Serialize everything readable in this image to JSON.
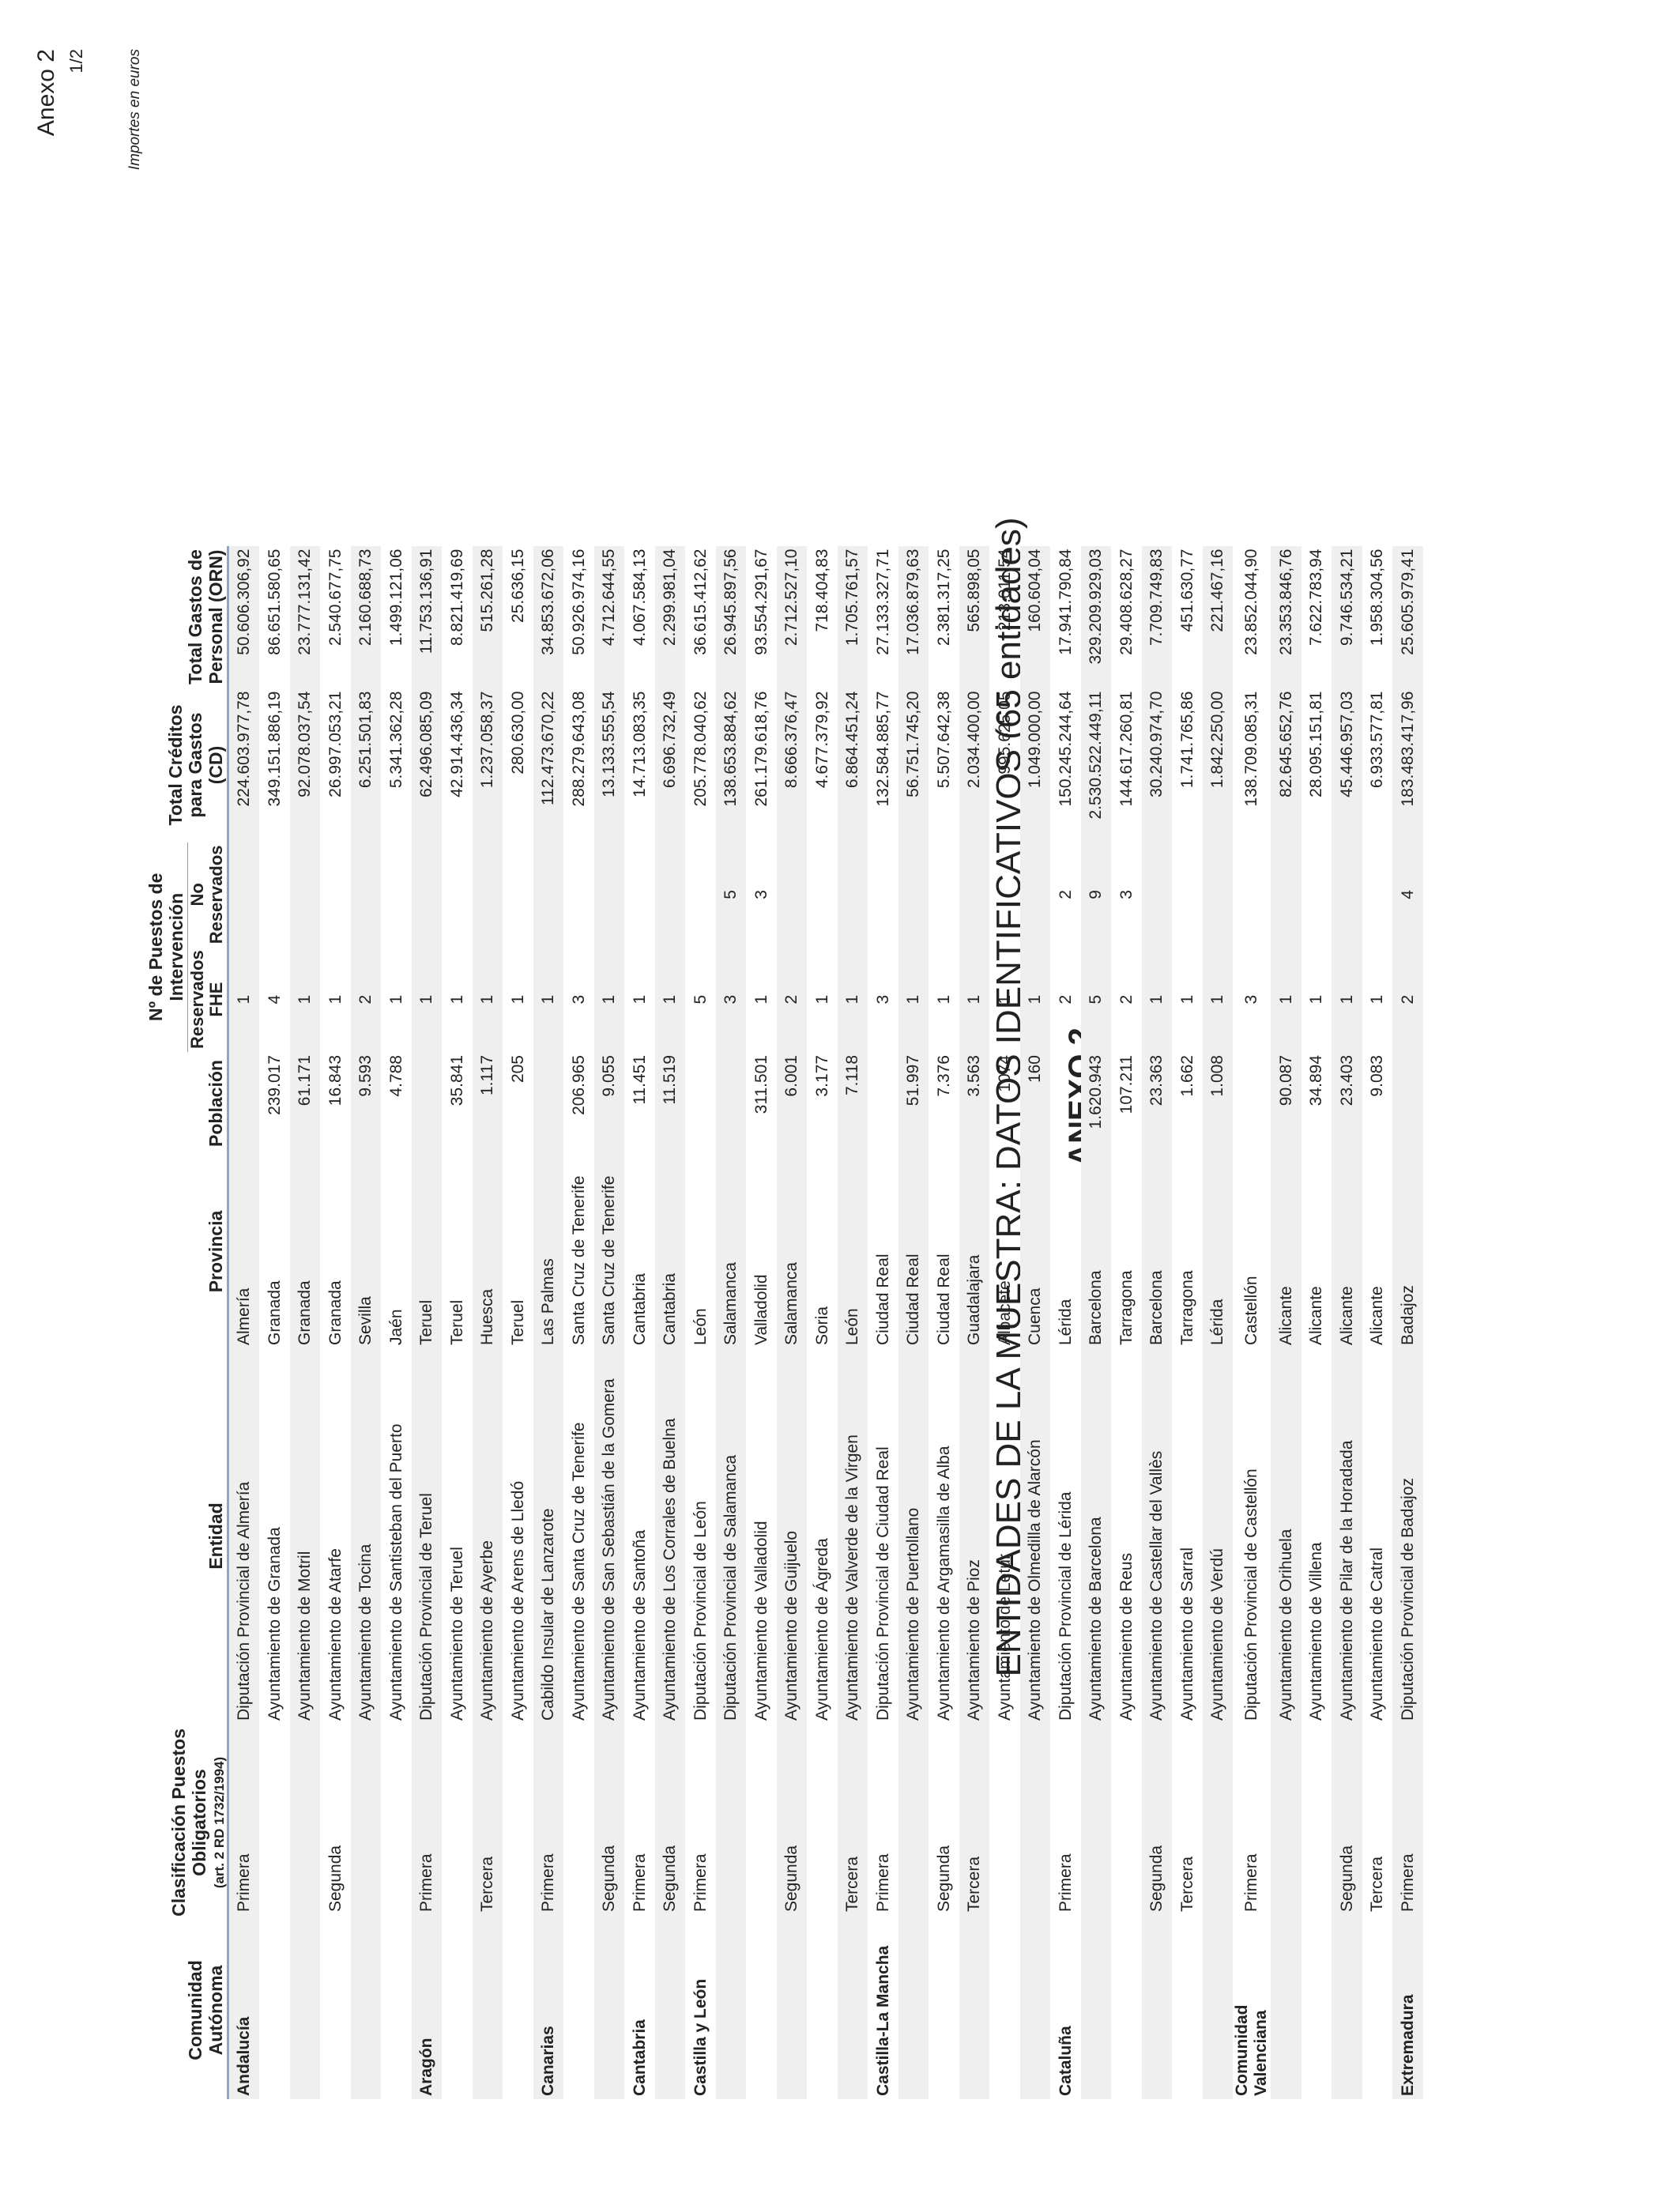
{
  "header": {
    "corner_label": "Anexo 2",
    "page_number": "1/2",
    "anexo_title": "ANEXO 2",
    "main_title": "ENTIDADES DE LA MUESTRA: DATOS IDENTIFICATIVOS (65 entidades)",
    "units_note": "Importes en euros"
  },
  "columns": {
    "comunidad": "Comunidad Autónoma",
    "clasificacion": "Clasificación Puestos Obligatorios",
    "clasificacion_sub": "(art. 2 RD 1732/1994)",
    "entidad": "Entidad",
    "provincia": "Provincia",
    "poblacion": "Población",
    "puestos_group": "Nº de Puestos de Intervención",
    "reservados": "Reservados FHE",
    "no_reservados": "No Reservados",
    "creditos": "Total Créditos para Gastos (CD)",
    "gastos": "Total Gastos de Personal (ORN)"
  },
  "rows": [
    {
      "comunidad": "Andalucía",
      "clasificacion": "Primera",
      "entidad": "Diputación Provincial de Almería",
      "provincia": "Almería",
      "poblacion": "",
      "reservados": "1",
      "no_reservados": "",
      "creditos": "224.603.977,78",
      "gastos": "50.606.306,92"
    },
    {
      "comunidad": "",
      "clasificacion": "",
      "entidad": "Ayuntamiento de Granada",
      "provincia": "Granada",
      "poblacion": "239.017",
      "reservados": "4",
      "no_reservados": "",
      "creditos": "349.151.886,19",
      "gastos": "86.651.580,65"
    },
    {
      "comunidad": "",
      "clasificacion": "",
      "entidad": "Ayuntamiento de Motril",
      "provincia": "Granada",
      "poblacion": "61.171",
      "reservados": "1",
      "no_reservados": "",
      "creditos": "92.078.037,54",
      "gastos": "23.777.131,42"
    },
    {
      "comunidad": "",
      "clasificacion": "Segunda",
      "entidad": "Ayuntamiento de Atarfe",
      "provincia": "Granada",
      "poblacion": "16.843",
      "reservados": "1",
      "no_reservados": "",
      "creditos": "26.997.053,21",
      "gastos": "2.540.677,75"
    },
    {
      "comunidad": "",
      "clasificacion": "",
      "entidad": "Ayuntamiento de Tocina",
      "provincia": "Sevilla",
      "poblacion": "9.593",
      "reservados": "2",
      "no_reservados": "",
      "creditos": "6.251.501,83",
      "gastos": "2.160.688,73"
    },
    {
      "comunidad": "",
      "clasificacion": "",
      "entidad": "Ayuntamiento de Santisteban del Puerto",
      "provincia": "Jaén",
      "poblacion": "4.788",
      "reservados": "1",
      "no_reservados": "",
      "creditos": "5.341.362,28",
      "gastos": "1.499.121,06"
    },
    {
      "comunidad": "Aragón",
      "clasificacion": "Primera",
      "entidad": "Diputación Provincial de Teruel",
      "provincia": "Teruel",
      "poblacion": "",
      "reservados": "1",
      "no_reservados": "",
      "creditos": "62.496.085,09",
      "gastos": "11.753.136,91"
    },
    {
      "comunidad": "",
      "clasificacion": "",
      "entidad": "Ayuntamiento de Teruel",
      "provincia": "Teruel",
      "poblacion": "35.841",
      "reservados": "1",
      "no_reservados": "",
      "creditos": "42.914.436,34",
      "gastos": "8.821.419,69"
    },
    {
      "comunidad": "",
      "clasificacion": "Tercera",
      "entidad": "Ayuntamiento de Ayerbe",
      "provincia": "Huesca",
      "poblacion": "1.117",
      "reservados": "1",
      "no_reservados": "",
      "creditos": "1.237.058,37",
      "gastos": "515.261,28"
    },
    {
      "comunidad": "",
      "clasificacion": "",
      "entidad": "Ayuntamiento de Arens de Lledó",
      "provincia": "Teruel",
      "poblacion": "205",
      "reservados": "1",
      "no_reservados": "",
      "creditos": "280.630,00",
      "gastos": "25.636,15"
    },
    {
      "comunidad": "Canarias",
      "clasificacion": "Primera",
      "entidad": "Cabildo Insular de Lanzarote",
      "provincia": "Las Palmas",
      "poblacion": "",
      "reservados": "1",
      "no_reservados": "",
      "creditos": "112.473.670,22",
      "gastos": "34.853.672,06"
    },
    {
      "comunidad": "",
      "clasificacion": "",
      "entidad": "Ayuntamiento de Santa Cruz de Tenerife",
      "provincia": "Santa Cruz de Tenerife",
      "poblacion": "206.965",
      "reservados": "3",
      "no_reservados": "",
      "creditos": "288.279.643,08",
      "gastos": "50.926.974,16"
    },
    {
      "comunidad": "",
      "clasificacion": "Segunda",
      "entidad": "Ayuntamiento de San Sebastián de la Gomera",
      "provincia": "Santa Cruz de Tenerife",
      "poblacion": "9.055",
      "reservados": "1",
      "no_reservados": "",
      "creditos": "13.133.555,54",
      "gastos": "4.712.644,55"
    },
    {
      "comunidad": "Cantabria",
      "clasificacion": "Primera",
      "entidad": "Ayuntamiento de Santoña",
      "provincia": "Cantabria",
      "poblacion": "11.451",
      "reservados": "1",
      "no_reservados": "",
      "creditos": "14.713.083,35",
      "gastos": "4.067.584,13"
    },
    {
      "comunidad": "",
      "clasificacion": "Segunda",
      "entidad": "Ayuntamiento de Los Corrales de Buelna",
      "provincia": "Cantabria",
      "poblacion": "11.519",
      "reservados": "1",
      "no_reservados": "",
      "creditos": "6.696.732,49",
      "gastos": "2.299.981,04"
    },
    {
      "comunidad": "Castilla y León",
      "clasificacion": "Primera",
      "entidad": "Diputación Provincial de León",
      "provincia": "León",
      "poblacion": "",
      "reservados": "5",
      "no_reservados": "",
      "creditos": "205.778.040,62",
      "gastos": "36.615.412,62"
    },
    {
      "comunidad": "",
      "clasificacion": "",
      "entidad": "Diputación Provincial de Salamanca",
      "provincia": "Salamanca",
      "poblacion": "",
      "reservados": "3",
      "no_reservados": "5",
      "creditos": "138.653.884,62",
      "gastos": "26.945.897,56"
    },
    {
      "comunidad": "",
      "clasificacion": "",
      "entidad": "Ayuntamiento de Valladolid",
      "provincia": "Valladolid",
      "poblacion": "311.501",
      "reservados": "1",
      "no_reservados": "3",
      "creditos": "261.179.618,76",
      "gastos": "93.554.291,67"
    },
    {
      "comunidad": "",
      "clasificacion": "Segunda",
      "entidad": "Ayuntamiento de Guijuelo",
      "provincia": "Salamanca",
      "poblacion": "6.001",
      "reservados": "2",
      "no_reservados": "",
      "creditos": "8.666.376,47",
      "gastos": "2.712.527,10"
    },
    {
      "comunidad": "",
      "clasificacion": "",
      "entidad": "Ayuntamiento de Ágreda",
      "provincia": "Soria",
      "poblacion": "3.177",
      "reservados": "1",
      "no_reservados": "",
      "creditos": "4.677.379,92",
      "gastos": "718.404,83"
    },
    {
      "comunidad": "",
      "clasificacion": "Tercera",
      "entidad": "Ayuntamiento de Valverde de la Virgen",
      "provincia": "León",
      "poblacion": "7.118",
      "reservados": "1",
      "no_reservados": "",
      "creditos": "6.864.451,24",
      "gastos": "1.705.761,57"
    },
    {
      "comunidad": "Castilla-La Mancha",
      "clasificacion": "Primera",
      "entidad": "Diputación Provincial de Ciudad Real",
      "provincia": "Ciudad Real",
      "poblacion": "",
      "reservados": "3",
      "no_reservados": "",
      "creditos": "132.584.885,77",
      "gastos": "27.133.327,71"
    },
    {
      "comunidad": "",
      "clasificacion": "",
      "entidad": "Ayuntamiento de Puertollano",
      "provincia": "Ciudad Real",
      "poblacion": "51.997",
      "reservados": "1",
      "no_reservados": "",
      "creditos": "56.751.745,20",
      "gastos": "17.036.879,63"
    },
    {
      "comunidad": "",
      "clasificacion": "Segunda",
      "entidad": "Ayuntamiento de Argamasilla de Alba",
      "provincia": "Ciudad Real",
      "poblacion": "7.376",
      "reservados": "1",
      "no_reservados": "",
      "creditos": "5.507.642,38",
      "gastos": "2.381.317,25"
    },
    {
      "comunidad": "",
      "clasificacion": "Tercera",
      "entidad": "Ayuntamiento de Pioz",
      "provincia": "Guadalajara",
      "poblacion": "3.563",
      "reservados": "1",
      "no_reservados": "",
      "creditos": "2.034.400,00",
      "gastos": "565.898,05"
    },
    {
      "comunidad": "",
      "clasificacion": "",
      "entidad": "Ayuntamiento de Letur",
      "provincia": "Albacete",
      "poblacion": "1074",
      "reservados": "1",
      "no_reservados": "",
      "creditos": "995.625,05",
      "gastos": "213.011,54"
    },
    {
      "comunidad": "",
      "clasificacion": "",
      "entidad": "Ayuntamiento de Olmedilla de Alarcón",
      "provincia": "Cuenca",
      "poblacion": "160",
      "reservados": "1",
      "no_reservados": "",
      "creditos": "1.049.000,00",
      "gastos": "160.604,04"
    },
    {
      "comunidad": "Cataluña",
      "clasificacion": "Primera",
      "entidad": "Diputación Provincial de Lérida",
      "provincia": "Lérida",
      "poblacion": "",
      "reservados": "2",
      "no_reservados": "2",
      "creditos": "150.245.244,64",
      "gastos": "17.941.790,84"
    },
    {
      "comunidad": "",
      "clasificacion": "",
      "entidad": "Ayuntamiento de Barcelona",
      "provincia": "Barcelona",
      "poblacion": "1.620.943",
      "reservados": "5",
      "no_reservados": "9",
      "creditos": "2.530.522.449,11",
      "gastos": "329.209.929,03"
    },
    {
      "comunidad": "",
      "clasificacion": "",
      "entidad": "Ayuntamiento de Reus",
      "provincia": "Tarragona",
      "poblacion": "107.211",
      "reservados": "2",
      "no_reservados": "3",
      "creditos": "144.617.260,81",
      "gastos": "29.408.628,27"
    },
    {
      "comunidad": "",
      "clasificacion": "Segunda",
      "entidad": "Ayuntamiento de Castellar del Vallès",
      "provincia": "Barcelona",
      "poblacion": "23.363",
      "reservados": "1",
      "no_reservados": "",
      "creditos": "30.240.974,70",
      "gastos": "7.709.749,83"
    },
    {
      "comunidad": "",
      "clasificacion": "Tercera",
      "entidad": "Ayuntamiento de Sarral",
      "provincia": "Tarragona",
      "poblacion": "1.662",
      "reservados": "1",
      "no_reservados": "",
      "creditos": "1.741.765,86",
      "gastos": "451.630,77"
    },
    {
      "comunidad": "",
      "clasificacion": "",
      "entidad": "Ayuntamiento de Verdú",
      "provincia": "Lérida",
      "poblacion": "1.008",
      "reservados": "1",
      "no_reservados": "",
      "creditos": "1.842.250,00",
      "gastos": "221.467,16"
    },
    {
      "comunidad": "Comunidad Valenciana",
      "clasificacion": "Primera",
      "entidad": "Diputación Provincial de Castellón",
      "provincia": "Castellón",
      "poblacion": "",
      "reservados": "3",
      "no_reservados": "",
      "creditos": "138.709.085,31",
      "gastos": "23.852.044,90"
    },
    {
      "comunidad": "",
      "clasificacion": "",
      "entidad": "Ayuntamiento de Orihuela",
      "provincia": "Alicante",
      "poblacion": "90.087",
      "reservados": "1",
      "no_reservados": "",
      "creditos": "82.645.652,76",
      "gastos": "23.353.846,76"
    },
    {
      "comunidad": "",
      "clasificacion": "",
      "entidad": "Ayuntamiento de Villena",
      "provincia": "Alicante",
      "poblacion": "34.894",
      "reservados": "1",
      "no_reservados": "",
      "creditos": "28.095.151,81",
      "gastos": "7.622.783,94"
    },
    {
      "comunidad": "",
      "clasificacion": "Segunda",
      "entidad": "Ayuntamiento de Pilar de la Horadada",
      "provincia": "Alicante",
      "poblacion": "23.403",
      "reservados": "1",
      "no_reservados": "",
      "creditos": "45.446.957,03",
      "gastos": "9.746.534,21"
    },
    {
      "comunidad": "",
      "clasificacion": "Tercera",
      "entidad": "Ayuntamiento de Catral",
      "provincia": "Alicante",
      "poblacion": "9.083",
      "reservados": "1",
      "no_reservados": "",
      "creditos": "6.933.577,81",
      "gastos": "1.958.304,56"
    },
    {
      "comunidad": "Extremadura",
      "clasificacion": "Primera",
      "entidad": "Diputación Provincial de Badajoz",
      "provincia": "Badajoz",
      "poblacion": "",
      "reservados": "2",
      "no_reservados": "4",
      "creditos": "183.483.417,96",
      "gastos": "25.605.979,41"
    }
  ]
}
